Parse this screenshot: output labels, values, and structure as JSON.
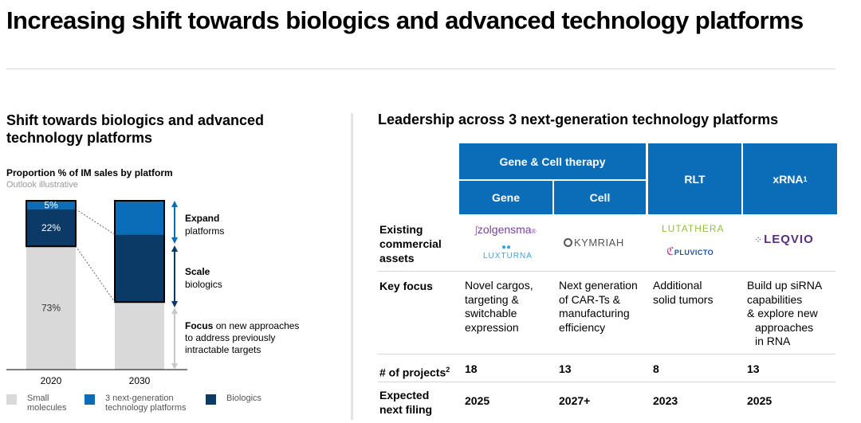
{
  "title": "Increasing shift towards biologics and advanced technology platforms",
  "left": {
    "heading": "Shift towards biologics and advanced technology platforms",
    "chart_title": "Proportion % of IM sales by platform",
    "chart_subtitle": "Outlook illustrative",
    "annotations": {
      "expand_bold": "Expand",
      "expand_rest": "platforms",
      "scale_bold": "Scale",
      "scale_rest": "biologics",
      "focus_bold": "Focus",
      "focus_line1": "on new approaches",
      "focus_line2": "to address previously",
      "focus_line3": "intractable targets"
    },
    "legend": {
      "small": [
        "Small",
        "molecules"
      ],
      "platforms": [
        "3 next-generation",
        "technology platforms"
      ],
      "biologics": "Biologics"
    }
  },
  "chart_data": {
    "type": "bar",
    "stacked": true,
    "categories": [
      "2020",
      "2030"
    ],
    "series": [
      {
        "name": "Small molecules",
        "values": [
          73,
          40
        ],
        "labels": [
          "73%",
          ""
        ]
      },
      {
        "name": "Biologics",
        "values": [
          22,
          40
        ],
        "labels": [
          "22%",
          ""
        ]
      },
      {
        "name": "3 next-generation technology platforms",
        "values": [
          5,
          20
        ],
        "labels": [
          "5%",
          ""
        ]
      }
    ],
    "ylim": [
      0,
      100
    ],
    "colors": {
      "Small molecules": "#d9d9d9",
      "Biologics": "#0b3a66",
      "3 next-generation technology platforms": "#0b6cb8"
    },
    "grid": false,
    "legend_position": "bottom"
  },
  "right": {
    "heading": "Leadership across 3 next-generation technology platforms",
    "headers": {
      "group": "Gene & Cell therapy",
      "gene": "Gene",
      "cell": "Cell",
      "rlt": "RLT",
      "xrna": "xRNA",
      "xrna_sup": "1"
    },
    "row_labels": {
      "assets": [
        "Existing",
        "commercial",
        "assets"
      ],
      "focus": "Key focus",
      "projects": "# of projects",
      "projects_sup": "2",
      "filing": [
        "Expected",
        "next filing"
      ]
    },
    "assets": {
      "zolgensma": "zolgensma",
      "luxturna": "LUXTURNA",
      "kymriah": "KYMRIAH",
      "lutathera": "LUTATHERA",
      "pluvicto": "PLUVICTO",
      "leqvio": "LEQVIO"
    },
    "focus": {
      "gene": [
        "Novel cargos,",
        "targeting &",
        "switchable",
        "expression"
      ],
      "cell": [
        "Next generation",
        "of CAR-Ts &",
        "manufacturing",
        "efficiency"
      ],
      "rlt": [
        "Additional",
        "solid tumors"
      ],
      "xrna": [
        "Build up siRNA",
        "capabilities",
        "& explore new",
        "approaches",
        "in RNA"
      ]
    },
    "projects": {
      "gene": "18",
      "cell": "13",
      "rlt": "8",
      "xrna": "13"
    },
    "filing": {
      "gene": "2025",
      "cell": "2027+",
      "rlt": "2023",
      "xrna": "2025"
    },
    "colors": {
      "header_blue": "#0b6cb8",
      "zolgensma_purple": "#7b3fa0",
      "lutathera_green": "#8fbf3f",
      "leqvio_purple": "#5b2d82",
      "pluvicto_blue": "#1c4f9c"
    }
  }
}
